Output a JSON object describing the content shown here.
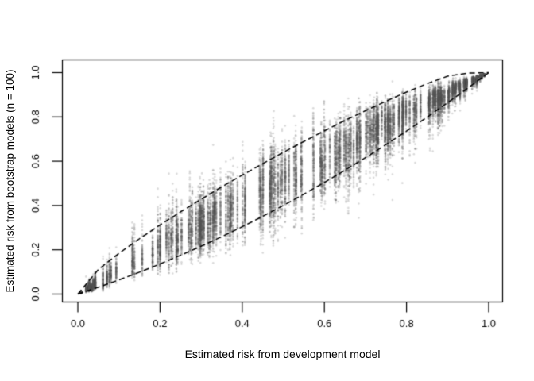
{
  "chart_data": {
    "type": "scatter",
    "title": "",
    "xlabel": "Estimated risk from development model",
    "ylabel": "Estimated risk from bootstrap models (n = 100)",
    "xlim": [
      0,
      1
    ],
    "ylim": [
      0,
      1
    ],
    "grid": false,
    "legend": null,
    "x_axis": {
      "tick_values": [
        0.0,
        0.2,
        0.4,
        0.6,
        0.8,
        1.0
      ],
      "tick_labels": [
        "0.0",
        "0.2",
        "0.4",
        "0.6",
        "0.8",
        "1.0"
      ]
    },
    "y_axis": {
      "tick_values": [
        0.0,
        0.2,
        0.4,
        0.6,
        0.8,
        1.0
      ],
      "tick_labels": [
        "0.0",
        "0.2",
        "0.4",
        "0.6",
        "0.8",
        "1.0"
      ]
    },
    "frame_color": "#000000",
    "envelope": {
      "style": "dashed",
      "color": "#000000",
      "dash": [
        7,
        4
      ],
      "line_width": 1.5,
      "x": [
        0.0,
        0.05,
        0.1,
        0.15,
        0.2,
        0.25,
        0.3,
        0.35,
        0.4,
        0.45,
        0.5,
        0.55,
        0.6,
        0.65,
        0.7,
        0.75,
        0.8,
        0.85,
        0.9,
        0.95,
        1.0
      ],
      "upper": [
        0.0,
        0.111,
        0.184,
        0.25,
        0.312,
        0.371,
        0.428,
        0.484,
        0.537,
        0.589,
        0.64,
        0.689,
        0.737,
        0.784,
        0.828,
        0.871,
        0.912,
        0.95,
        0.984,
        0.998,
        1.0
      ],
      "lower": [
        0.0,
        0.031,
        0.064,
        0.099,
        0.136,
        0.175,
        0.216,
        0.259,
        0.304,
        0.351,
        0.4,
        0.451,
        0.504,
        0.559,
        0.616,
        0.675,
        0.736,
        0.799,
        0.864,
        0.931,
        1.0
      ]
    },
    "cloud": {
      "description": "Vertical strips of semi-transparent gray bootstrap risk estimates, one strip per development-model risk value, converging at (0,0) and (1,1)",
      "seed": 20240701,
      "main_strips": 165,
      "low_strips": 14,
      "high_strips": 9,
      "x_logit_mean": 0.35,
      "x_logit_sd": 1.25,
      "low_logit_mean": -3.3,
      "low_logit_sd": 0.9,
      "high_logit_mean": 3.8,
      "high_logit_sd": 0.5,
      "min_per_strip": 80,
      "max_per_strip": 120,
      "shift_mean": 0.06,
      "shift_sd": 0.1,
      "spread_base": 0.26,
      "spread_jitter": 0.1,
      "point_color": "rgba(85,85,85,0.22)",
      "point_radius": 1.3
    }
  }
}
